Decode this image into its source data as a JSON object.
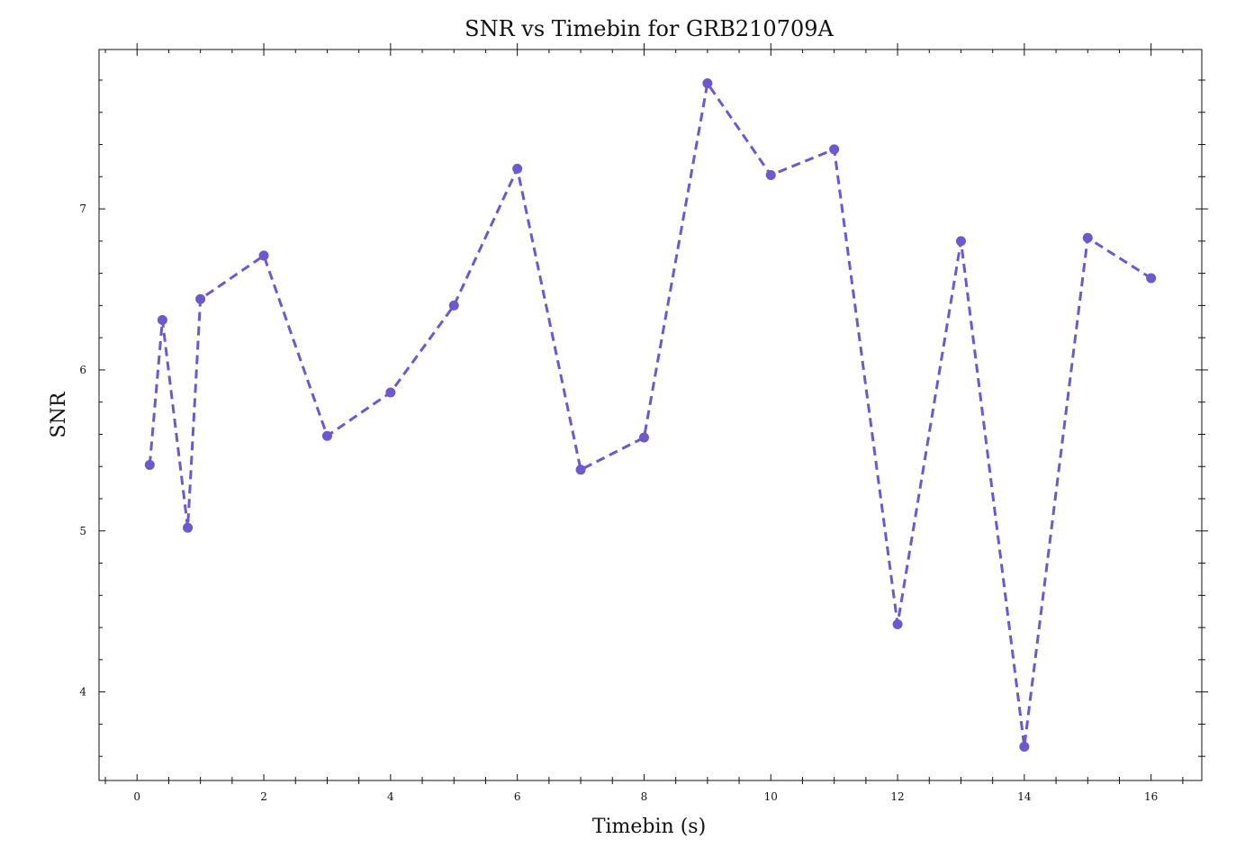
{
  "chart_data": {
    "type": "line",
    "title": "SNR vs Timebin for GRB210709A",
    "xlabel": "Timebin (s)",
    "ylabel": "SNR",
    "xlim": [
      -0.6,
      16.8
    ],
    "ylim": [
      3.45,
      7.99
    ],
    "x_ticks": [
      0,
      2,
      4,
      6,
      8,
      10,
      12,
      14,
      16
    ],
    "y_ticks": [
      4,
      5,
      6,
      7
    ],
    "grid": false,
    "line_style": "dashed",
    "marker": "circle",
    "color": "#6a5acd",
    "series": [
      {
        "x": [
          0.2,
          0.4,
          0.8,
          1.0,
          2.0,
          3.0,
          4.0,
          5.0,
          6.0,
          7.0,
          8.0,
          9.0,
          10.0,
          11.0,
          12.0,
          13.0,
          14.0,
          15.0,
          16.0
        ],
        "values": [
          5.41,
          6.31,
          5.02,
          6.44,
          6.71,
          5.59,
          5.86,
          6.4,
          7.25,
          5.38,
          5.58,
          7.78,
          7.21,
          7.37,
          4.42,
          6.8,
          3.66,
          6.82,
          6.57
        ]
      }
    ]
  }
}
